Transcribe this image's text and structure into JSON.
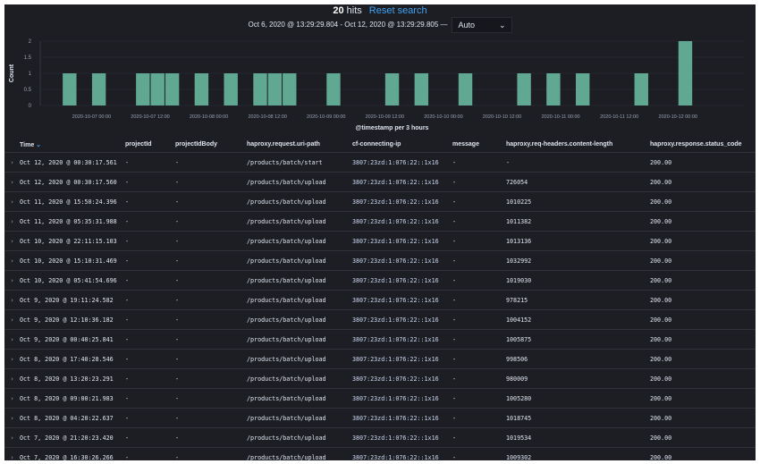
{
  "header": {
    "hits_count": "20",
    "hits_label": "hits",
    "reset_label": "Reset search",
    "time_range": "Oct 6, 2020 @ 13:29:29.804 - Oct 12, 2020 @ 13:29:29.805 —",
    "interval": "Auto",
    "interval_icon": "chevron-down-icon"
  },
  "chart_data": {
    "type": "bar",
    "xlabel": "@timestamp per 3 hours",
    "ylabel": "Count",
    "ylim": [
      0,
      2
    ],
    "yticks": [
      "0",
      "0.5",
      "1",
      "1.5",
      "2"
    ],
    "xlim": [
      "2020-10-06 13:29:29.804",
      "2020-10-12 13:29:29.805"
    ],
    "xticks": [
      "2020-10-07 00:00",
      "2020-10-07 12:00",
      "2020-10-08 00:00",
      "2020-10-08 12:00",
      "2020-10-09 00:00",
      "2020-10-09 12:00",
      "2020-10-10 00:00",
      "2020-10-10 12:00",
      "2020-10-11 00:00",
      "2020-10-11 12:00",
      "2020-10-12 00:00"
    ],
    "bin_hours": 3,
    "bar_color": "#60a892",
    "bins": [
      {
        "x": "2020-10-06 18:00",
        "y": 1
      },
      {
        "x": "2020-10-07 00:00",
        "y": 1
      },
      {
        "x": "2020-10-07 09:00",
        "y": 1
      },
      {
        "x": "2020-10-07 12:00",
        "y": 1
      },
      {
        "x": "2020-10-07 15:00",
        "y": 1
      },
      {
        "x": "2020-10-07 21:00",
        "y": 1
      },
      {
        "x": "2020-10-08 03:00",
        "y": 1
      },
      {
        "x": "2020-10-08 09:00",
        "y": 1
      },
      {
        "x": "2020-10-08 12:00",
        "y": 1
      },
      {
        "x": "2020-10-08 15:00",
        "y": 1
      },
      {
        "x": "2020-10-09 00:00",
        "y": 1
      },
      {
        "x": "2020-10-09 12:00",
        "y": 1
      },
      {
        "x": "2020-10-09 18:00",
        "y": 1
      },
      {
        "x": "2020-10-10 03:00",
        "y": 1
      },
      {
        "x": "2020-10-10 15:00",
        "y": 1
      },
      {
        "x": "2020-10-10 21:00",
        "y": 1
      },
      {
        "x": "2020-10-11 03:00",
        "y": 1
      },
      {
        "x": "2020-10-11 15:00",
        "y": 1
      },
      {
        "x": "2020-10-12 00:00",
        "y": 2
      }
    ]
  },
  "table": {
    "columns": [
      "Time",
      "projectId",
      "projectIdBody",
      "haproxy.request.uri-path",
      "cf-connecting-ip",
      "message",
      "haproxy.req-headers.content-length",
      "haproxy.response.status_code"
    ],
    "sort_icon": "sort-down-icon",
    "rows": [
      [
        "Oct 12, 2020 @ 00:30:17.561",
        "-",
        "-",
        "/products/batch/start",
        "3807:23zd:1:076:22::1x16",
        "-",
        "-",
        "200.00"
      ],
      [
        "Oct 12, 2020 @ 00:30:17.560",
        "-",
        "-",
        "/products/batch/upload",
        "3807:23zd:1:076:22::1x16",
        "-",
        "726054",
        "200.00"
      ],
      [
        "Oct 11, 2020 @ 15:50:24.396",
        "-",
        "-",
        "/products/batch/upload",
        "3807:23zd:1:076:22::1x16",
        "-",
        "1010225",
        "200.00"
      ],
      [
        "Oct 11, 2020 @ 05:35:31.988",
        "-",
        "-",
        "/products/batch/upload",
        "3807:23zd:1:076:22::1x16",
        "-",
        "1011382",
        "200.00"
      ],
      [
        "Oct 10, 2020 @ 22:11:15.103",
        "-",
        "-",
        "/products/batch/upload",
        "3807:23zd:1:076:22::1x16",
        "-",
        "1013136",
        "200.00"
      ],
      [
        "Oct 10, 2020 @ 15:10:31.469",
        "-",
        "-",
        "/products/batch/upload",
        "3807:23zd:1:076:22::1x16",
        "-",
        "1032992",
        "200.00"
      ],
      [
        "Oct 10, 2020 @ 05:41:54.696",
        "-",
        "-",
        "/products/batch/upload",
        "3807:23zd:1:076:22::1x16",
        "-",
        "1019030",
        "200.00"
      ],
      [
        "Oct 9, 2020 @ 19:11:24.582",
        "-",
        "-",
        "/products/batch/upload",
        "3807:23zd:1:076:22::1x16",
        "-",
        "978215",
        "200.00"
      ],
      [
        "Oct 9, 2020 @ 12:10:36.182",
        "-",
        "-",
        "/products/batch/upload",
        "3807:23zd:1:076:22::1x16",
        "-",
        "1004152",
        "200.00"
      ],
      [
        "Oct 9, 2020 @ 00:40:25.841",
        "-",
        "-",
        "/products/batch/upload",
        "3807:23zd:1:076:22::1x16",
        "-",
        "1005875",
        "200.00"
      ],
      [
        "Oct 8, 2020 @ 17:40:28.546",
        "-",
        "-",
        "/products/batch/upload",
        "3807:23zd:1:076:22::1x16",
        "-",
        "998506",
        "200.00"
      ],
      [
        "Oct 8, 2020 @ 13:20:23.291",
        "-",
        "-",
        "/products/batch/upload",
        "3807:23zd:1:076:22::1x16",
        "-",
        "980009",
        "200.00"
      ],
      [
        "Oct 8, 2020 @ 09:00:21.983",
        "-",
        "-",
        "/products/batch/upload",
        "3807:23zd:1:076:22::1x16",
        "-",
        "1005280",
        "200.00"
      ],
      [
        "Oct 8, 2020 @ 04:20:22.637",
        "-",
        "-",
        "/products/batch/upload",
        "3807:23zd:1:076:22::1x16",
        "-",
        "1018745",
        "200.00"
      ],
      [
        "Oct 7, 2020 @ 21:20:23.420",
        "-",
        "-",
        "/products/batch/upload",
        "3807:23zd:1:076:22::1x16",
        "-",
        "1019534",
        "200.00"
      ],
      [
        "Oct 7, 2020 @ 16:30:26.266",
        "-",
        "-",
        "/products/batch/upload",
        "3807:23zd:1:076:22::1x16",
        "-",
        "1009302",
        "200.00"
      ]
    ]
  }
}
